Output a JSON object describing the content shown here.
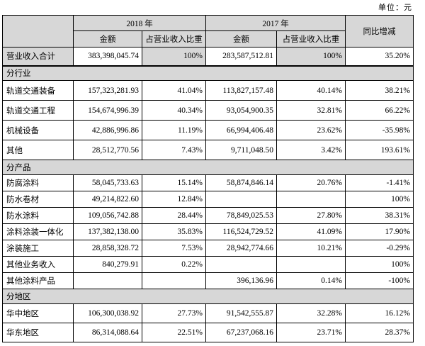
{
  "unit_label": "单位：元",
  "table": {
    "header": {
      "year_2018": "2018 年",
      "year_2017": "2017 年",
      "yoy": "同比增减",
      "amount_2018": "金额",
      "ratio_2018": "占营业收入比重",
      "amount_2017": "金额",
      "ratio_2017": "占营业收入比重"
    },
    "total_row": {
      "label": "营业收入合计",
      "a2018": "383,398,045.74",
      "r2018": "100%",
      "a2017": "283,587,512.81",
      "r2017": "100%",
      "yoy": "35.20%"
    },
    "sections": [
      {
        "title": "分行业",
        "rows": [
          {
            "label": "轨道交通装备",
            "a2018": "157,323,281.93",
            "r2018": "41.04%",
            "a2017": "113,827,157.48",
            "r2017": "40.14%",
            "yoy": "38.21%"
          },
          {
            "label": "轨道交通工程",
            "a2018": "154,674,996.39",
            "r2018": "40.34%",
            "a2017": "93,054,900.35",
            "r2017": "32.81%",
            "yoy": "66.22%"
          },
          {
            "label": "机械设备",
            "a2018": "42,886,996.86",
            "r2018": "11.19%",
            "a2017": "66,994,406.48",
            "r2017": "23.62%",
            "yoy": "-35.98%"
          },
          {
            "label": "其他",
            "a2018": "28,512,770.56",
            "r2018": "7.43%",
            "a2017": "9,711,048.50",
            "r2017": "3.42%",
            "yoy": "193.61%"
          }
        ]
      },
      {
        "title": "分产品",
        "rows": [
          {
            "label": "防腐涂料",
            "a2018": "58,045,733.63",
            "r2018": "15.14%",
            "a2017": "58,874,846.14",
            "r2017": "20.76%",
            "yoy": "-1.41%"
          },
          {
            "label": "防水卷材",
            "a2018": "49,214,822.60",
            "r2018": "12.84%",
            "a2017": "",
            "r2017": "",
            "yoy": "100%"
          },
          {
            "label": "防水涂料",
            "a2018": "109,056,742.88",
            "r2018": "28.44%",
            "a2017": "78,849,025.53",
            "r2017": "27.80%",
            "yoy": "38.31%"
          },
          {
            "label": "涂料涂装一体化",
            "a2018": "137,382,138.00",
            "r2018": "35.83%",
            "a2017": "116,524,729.52",
            "r2017": "41.09%",
            "yoy": "17.90%"
          },
          {
            "label": "涂装施工",
            "a2018": "28,858,328.72",
            "r2018": "7.53%",
            "a2017": "28,942,774.66",
            "r2017": "10.21%",
            "yoy": "-0.29%"
          },
          {
            "label": "其他业务收入",
            "a2018": "840,279.91",
            "r2018": "0.22%",
            "a2017": "",
            "r2017": "",
            "yoy": "100%"
          },
          {
            "label": "其他涂料产品",
            "a2018": "",
            "r2018": "",
            "a2017": "396,136.96",
            "r2017": "0.14%",
            "yoy": "-100%"
          }
        ]
      },
      {
        "title": "分地区",
        "rows": [
          {
            "label": "华中地区",
            "a2018": "106,300,038.92",
            "r2018": "27.73%",
            "a2017": "91,542,555.87",
            "r2017": "32.28%",
            "yoy": "16.12%"
          },
          {
            "label": "华东地区",
            "a2018": "86,314,088.64",
            "r2018": "22.51%",
            "a2017": "67,237,068.16",
            "r2017": "23.71%",
            "yoy": "28.37%"
          }
        ]
      }
    ]
  }
}
